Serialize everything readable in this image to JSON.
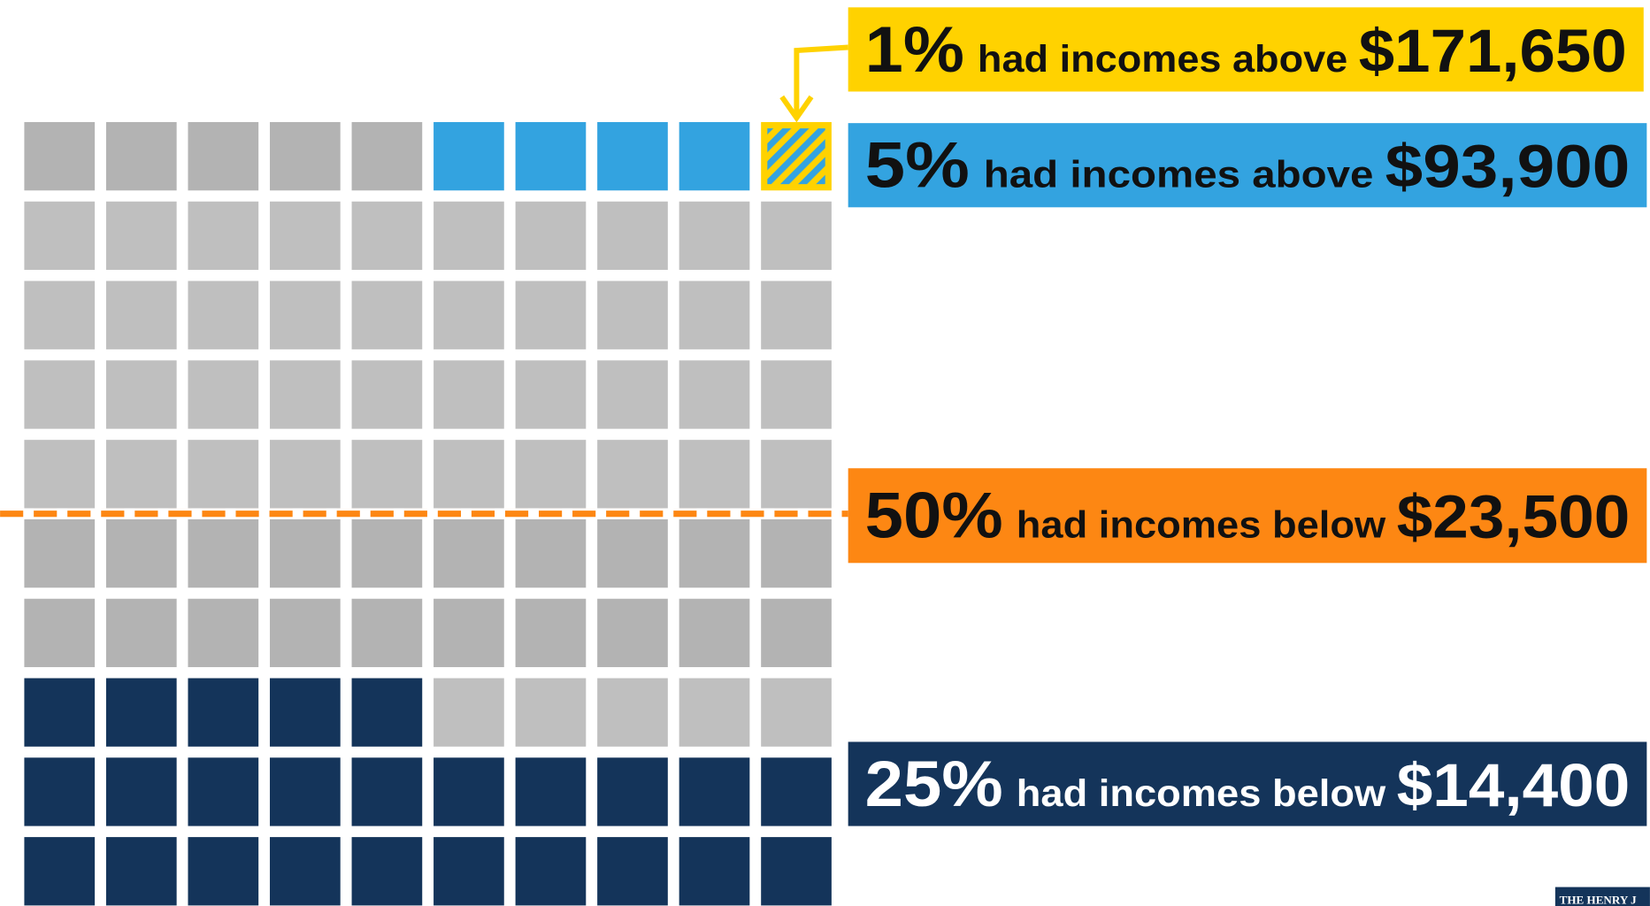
{
  "chart_data": {
    "type": "waffle",
    "callouts": [
      {
        "percent": 1,
        "percent_label": "1%",
        "text": "had incomes above",
        "amount": "$171,650",
        "color": "#ffd200",
        "text_color": "#111111",
        "end": "top",
        "style": "hatched"
      },
      {
        "percent": 5,
        "percent_label": "5%",
        "text": "had incomes above",
        "amount": "$93,900",
        "color": "#33a3e0",
        "text_color": "#111111",
        "end": "top",
        "style": "solid"
      },
      {
        "percent": 50,
        "percent_label": "50%",
        "text": "had incomes below",
        "amount": "$23,500",
        "color": "#fd8713",
        "text_color": "#111111",
        "end": "line",
        "style": "dashed"
      },
      {
        "percent": 25,
        "percent_label": "25%",
        "text": "had incomes below",
        "amount": "$14,400",
        "color": "#14345a",
        "text_color": "#ffffff",
        "end": "bottom",
        "style": "solid"
      }
    ],
    "logo_text": "THE HENRY J"
  }
}
